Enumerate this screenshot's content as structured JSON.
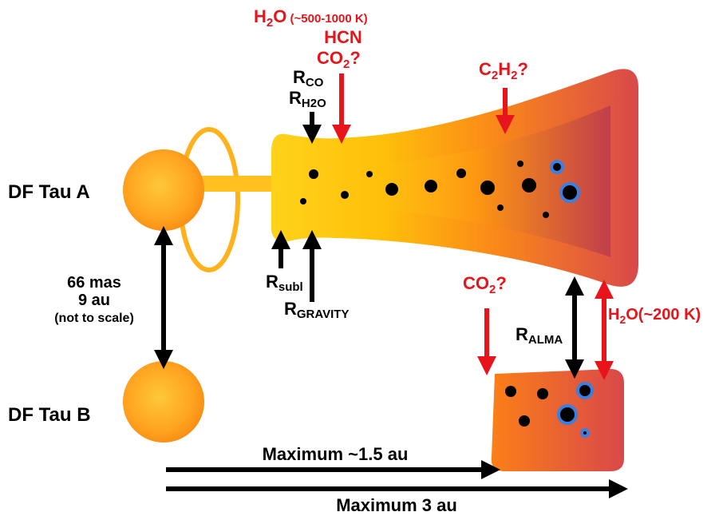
{
  "stars": {
    "a": "DF Tau A",
    "b": "DF Tau B"
  },
  "separation": {
    "line1": "66 mas",
    "line2": "9 au",
    "line3": "(not to scale)"
  },
  "radii": {
    "r_co": [
      "R",
      "CO"
    ],
    "r_h2o": [
      "R",
      "H2O"
    ],
    "r_subl": [
      "R",
      "subl"
    ],
    "r_gravity": [
      "R",
      "GRAVITY"
    ],
    "r_alma": [
      "R",
      "ALMA"
    ]
  },
  "molecules": {
    "h2o_hot": [
      "H",
      "2",
      "O",
      " (~500-1000  K)"
    ],
    "hcn": "HCN",
    "co2_inner": [
      "CO",
      "2",
      "?"
    ],
    "c2h2": [
      "C",
      "2",
      "H",
      "2",
      "?"
    ],
    "co2_outer": [
      "CO",
      "2",
      "?"
    ],
    "h2o_cold": [
      "H",
      "2",
      "O(~200 K)"
    ]
  },
  "scales": {
    "max_small": "Maximum ~1.5 au",
    "max_large": "Maximum 3 au"
  }
}
